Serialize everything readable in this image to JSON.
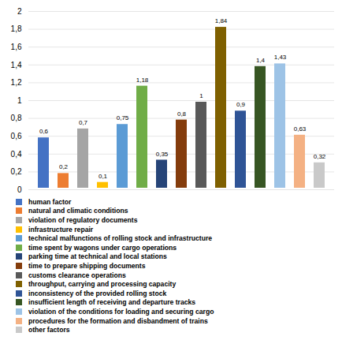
{
  "chart_data": {
    "type": "bar",
    "categories": [
      "human factor",
      "natural and climatic conditions",
      "violation of regulatory documents",
      "infrastructure repair",
      "technical malfunctions of rolling stock and infrastructure",
      "time spent by wagons under cargo operations",
      "parking time at technical and local stations",
      "time to prepare shipping documents",
      "customs clearance operations",
      "throughput, carrying and processing capacity",
      "inconsistency of the provided rolling stock",
      "insufficient length of receiving and departure tracks",
      "violation of the conditions for loading and securing cargo",
      "procedures for the formation and disbandment of trains",
      "other factors"
    ],
    "values": [
      0.6,
      0.2,
      0.7,
      0.1,
      0.75,
      1.18,
      0.35,
      0.8,
      1.0,
      1.84,
      0.9,
      1.4,
      1.43,
      0.63,
      0.32
    ],
    "value_labels": [
      "0,6",
      "0,2",
      "0,7",
      "0,1",
      "0,75",
      "1,18",
      "0,35",
      "0,8",
      "1",
      "1,84",
      "0,9",
      "1,4",
      "1,43",
      "0,63",
      "0,32"
    ],
    "colors": [
      "#4472C4",
      "#ED7D31",
      "#A5A5A5",
      "#FFC000",
      "#5B9BD5",
      "#70AD47",
      "#264478",
      "#843C0C",
      "#595959",
      "#7F6000",
      "#2F5496",
      "#375623",
      "#9DC3E6",
      "#F4B183",
      "#C9C9C9"
    ],
    "ylim": [
      0,
      2.0
    ],
    "yticks": [
      0,
      {
        "value": 0.2,
        "label": "0,2"
      },
      {
        "value": 0.4,
        "label": "0,4"
      },
      {
        "value": 0.6,
        "label": "0,6"
      },
      {
        "value": 0.8,
        "label": "0,8"
      },
      1,
      {
        "value": 1.2,
        "label": "1,2"
      },
      {
        "value": 1.4,
        "label": "1,4"
      },
      {
        "value": 1.6,
        "label": "1,6"
      },
      {
        "value": 1.8,
        "label": "1,8"
      },
      2
    ],
    "grid": true,
    "data_labels": true,
    "tick_labels": "y",
    "legend": "bottom"
  }
}
